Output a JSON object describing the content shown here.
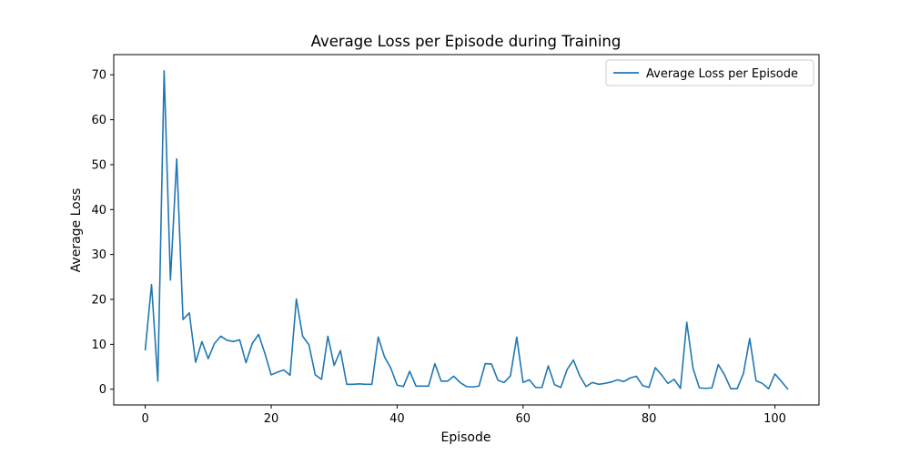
{
  "chart_data": {
    "type": "line",
    "title": "Average Loss per Episode during Training",
    "xlabel": "Episode",
    "ylabel": "Average Loss",
    "xlim": [
      -5,
      107
    ],
    "ylim": [
      -3.5,
      74.5
    ],
    "xticks": [
      0,
      20,
      40,
      60,
      80,
      100
    ],
    "yticks": [
      0,
      10,
      20,
      30,
      40,
      50,
      60,
      70
    ],
    "grid": false,
    "legend_position": "top-right",
    "series": [
      {
        "name": "Average Loss per Episode",
        "color": "#1f77b4",
        "x": [
          0,
          1,
          2,
          3,
          4,
          5,
          6,
          7,
          8,
          9,
          10,
          11,
          12,
          13,
          14,
          15,
          16,
          17,
          18,
          19,
          20,
          21,
          22,
          23,
          24,
          25,
          26,
          27,
          28,
          29,
          30,
          31,
          32,
          33,
          34,
          35,
          36,
          37,
          38,
          39,
          40,
          41,
          42,
          43,
          44,
          45,
          46,
          47,
          48,
          49,
          50,
          51,
          52,
          53,
          54,
          55,
          56,
          57,
          58,
          59,
          60,
          61,
          62,
          63,
          64,
          65,
          66,
          67,
          68,
          69,
          70,
          71,
          72,
          73,
          74,
          75,
          76,
          77,
          78,
          79,
          80,
          81,
          82,
          83,
          84,
          85,
          86,
          87,
          88,
          89,
          90,
          91,
          92,
          93,
          94,
          95,
          96,
          97,
          98,
          99,
          100,
          101,
          102
        ],
        "y": [
          8.8,
          23.3,
          1.8,
          70.9,
          24.3,
          51.3,
          15.5,
          17.0,
          6.0,
          10.6,
          6.8,
          10.2,
          11.8,
          10.9,
          10.6,
          11.0,
          5.9,
          10.2,
          12.2,
          8.0,
          3.2,
          3.8,
          4.3,
          3.1,
          20.1,
          11.8,
          9.9,
          3.2,
          2.2,
          11.8,
          5.3,
          8.6,
          1.1,
          1.1,
          1.2,
          1.1,
          1.1,
          11.6,
          7.2,
          4.7,
          0.9,
          0.6,
          4.0,
          0.7,
          0.7,
          0.7,
          5.7,
          1.8,
          1.8,
          2.9,
          1.5,
          0.6,
          0.5,
          0.7,
          5.7,
          5.6,
          2.0,
          1.5,
          3.0,
          11.6,
          1.5,
          2.1,
          0.4,
          0.4,
          5.2,
          1.0,
          0.4,
          4.4,
          6.5,
          3.0,
          0.6,
          1.5,
          1.1,
          1.3,
          1.6,
          2.1,
          1.7,
          2.5,
          2.9,
          0.8,
          0.4,
          4.8,
          3.2,
          1.3,
          2.2,
          0.2,
          14.9,
          4.6,
          0.3,
          0.2,
          0.3,
          5.5,
          3.2,
          0.1,
          0.1,
          3.5,
          11.3,
          1.9,
          1.3,
          0.1,
          3.4,
          1.8,
          0.1
        ]
      }
    ]
  }
}
